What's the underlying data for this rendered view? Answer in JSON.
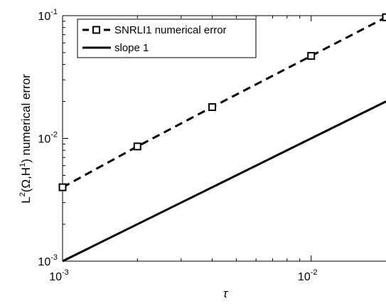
{
  "chart_data": {
    "type": "line",
    "xlabel": "τ",
    "ylabel": {
      "parts": [
        "L",
        "2",
        "(Ω,H",
        "1",
        ") numerical error"
      ]
    },
    "xscale": "log",
    "yscale": "log",
    "xlim": [
      0.001,
      0.02
    ],
    "ylim": [
      0.001,
      0.1
    ],
    "x_ticks": [
      {
        "value": 0.001,
        "base": "10",
        "exp": "-3"
      },
      {
        "value": 0.01,
        "base": "10",
        "exp": "-2"
      }
    ],
    "y_ticks": [
      {
        "value": 0.001,
        "base": "10",
        "exp": "-3"
      },
      {
        "value": 0.01,
        "base": "10",
        "exp": "-2"
      },
      {
        "value": 0.1,
        "base": "10",
        "exp": "-1"
      }
    ],
    "grid": false,
    "legend_position": "top-left",
    "series": [
      {
        "name": "SNRLI1 numerical error",
        "style": "dashed",
        "marker": "square",
        "color": "#000000",
        "x": [
          0.001,
          0.002,
          0.004,
          0.01,
          0.02
        ],
        "y": [
          0.004,
          0.0086,
          0.018,
          0.047,
          0.097
        ]
      },
      {
        "name": "slope 1",
        "style": "solid",
        "marker": "none",
        "color": "#000000",
        "x": [
          0.001,
          0.02
        ],
        "y": [
          0.001,
          0.02
        ]
      }
    ]
  }
}
